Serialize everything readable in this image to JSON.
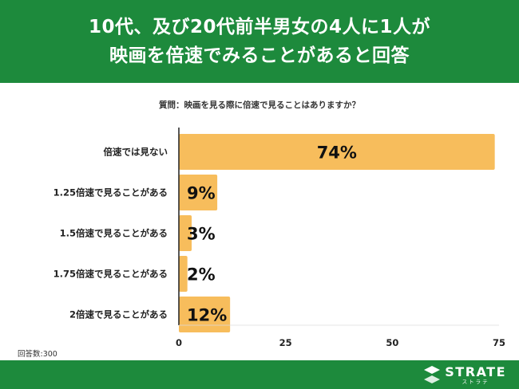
{
  "header": {
    "title_line1": "10代、及び20代前半男女の4人に1人が",
    "title_line2": "映画を倍速でみることがあると回答"
  },
  "question": "質問：映画を見る際に倍速で見ることはありますか？",
  "note": "回答数:300",
  "footer": {
    "brand": "STRATE",
    "brand_kana": "ストラテ",
    "logo_icon": "strate-logo-icon"
  },
  "colors": {
    "green": "#1d8a3c",
    "bar": "#f7bd5c",
    "text": "#222222"
  },
  "chart_data": {
    "type": "bar",
    "orientation": "horizontal",
    "categories": [
      "倍速では見ない",
      "1.25倍速で見ることがある",
      "1.5倍速で見ることがある",
      "1.75倍速で見ることがある",
      "2倍速で見ることがある"
    ],
    "values": [
      74,
      9,
      3,
      2,
      12
    ],
    "data_labels": [
      "74%",
      "9%",
      "3%",
      "2%",
      "12%"
    ],
    "xlim": [
      0,
      75
    ],
    "xticks": [
      0,
      25,
      50,
      75
    ],
    "grid": false,
    "legend": "none"
  }
}
